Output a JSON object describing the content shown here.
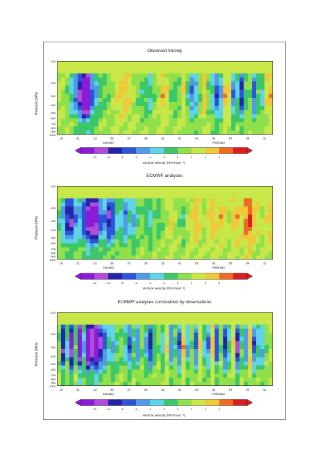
{
  "chart_data": [
    {
      "type": "heatmap",
      "title": "Observed forcing",
      "ylabel": "Pressure (hPa)",
      "y_ticks": [
        "100",
        "200",
        "300",
        "400",
        "500",
        "600",
        "700",
        "800",
        "900",
        "1000"
      ],
      "x_ticks": [
        "19",
        "21",
        "23",
        "25",
        "27",
        "29",
        "31",
        "01",
        "03",
        "05",
        "07",
        "09",
        "11"
      ],
      "months": [
        "January",
        "February"
      ],
      "colorbar": {
        "ticks": [
          "-12",
          "-10",
          "-8",
          "-6",
          "-4",
          "-2",
          "0",
          "2",
          "4",
          "6"
        ],
        "label": "Vertical velocity (hPa hour⁻¹)"
      },
      "profile": [
        0.5,
        -0.4,
        -1,
        -3,
        -5,
        -8,
        -12,
        -12,
        -6,
        -4,
        -2,
        -1.5,
        -1,
        0,
        1,
        1.5,
        2,
        1,
        0,
        -1,
        -2,
        -2,
        -3,
        -1,
        0,
        2,
        1,
        -1,
        -2,
        -1,
        1,
        -2,
        -5,
        -4,
        -1,
        2,
        -1,
        -3,
        -6,
        -4,
        2,
        1,
        -5,
        -3,
        -7,
        -2,
        -1,
        -6,
        -2,
        -3,
        1,
        2
      ]
    },
    {
      "type": "heatmap",
      "title": "ECMWF analyses",
      "ylabel": "Pressure (hPa)",
      "y_ticks": [
        "100",
        "200",
        "300",
        "400",
        "500",
        "600",
        "700",
        "800",
        "900",
        "1000"
      ],
      "x_ticks": [
        "19",
        "21",
        "23",
        "25",
        "27",
        "29",
        "31",
        "01",
        "03",
        "05",
        "07",
        "09",
        "11"
      ],
      "months": [
        "January",
        "February"
      ],
      "colorbar": {
        "ticks": [
          "-12",
          "-10",
          "-8",
          "-6",
          "-4",
          "-2",
          "0",
          "2",
          "4",
          "6"
        ],
        "label": "Vertical velocity (hPa hour⁻¹)"
      },
      "profile": [
        -2,
        -4,
        -7,
        -8,
        -5,
        -4,
        -6,
        -10,
        -11,
        -10,
        -6,
        -5,
        -8,
        -6,
        -3,
        -3,
        -5,
        -3,
        -4,
        -2,
        -1,
        -2,
        -3,
        -1,
        -2,
        -1,
        0,
        1,
        0,
        -1,
        -2,
        0,
        1,
        2,
        1,
        0,
        1,
        2,
        1,
        2,
        1,
        0,
        2,
        2,
        1,
        3,
        4,
        2,
        1,
        0,
        1,
        2
      ]
    },
    {
      "type": "heatmap",
      "title": "ECMWF analyses constrained by observations",
      "ylabel": "Pressure (hPa)",
      "y_ticks": [
        "100",
        "200",
        "300",
        "400",
        "500",
        "600",
        "700",
        "800",
        "900",
        "1000"
      ],
      "x_ticks": [
        "19",
        "21",
        "23",
        "25",
        "27",
        "29",
        "31",
        "01",
        "03",
        "05",
        "07",
        "09",
        "11"
      ],
      "months": [
        "January",
        "February"
      ],
      "colorbar": {
        "ticks": [
          "-12",
          "-10",
          "-8",
          "-6",
          "-4",
          "-2",
          "0",
          "2",
          "4",
          "6"
        ],
        "label": "Vertical velocity (hPa hour⁻¹)"
      },
      "profile": [
        -1,
        -8,
        -3,
        -10,
        -2,
        -11,
        -4,
        -12,
        -9,
        -12,
        -8,
        -6,
        -3,
        -4,
        -2,
        -1,
        -3,
        -6,
        -2,
        -5,
        -1,
        -4,
        -7,
        -2,
        -1,
        -3,
        1,
        -5,
        -2,
        -6,
        2,
        -4,
        -1,
        -6,
        1,
        -3,
        -5,
        2,
        -6,
        -1,
        -7,
        -3,
        1,
        -8,
        -2,
        -5,
        2,
        -6,
        -3,
        -4,
        -1,
        0
      ]
    }
  ]
}
